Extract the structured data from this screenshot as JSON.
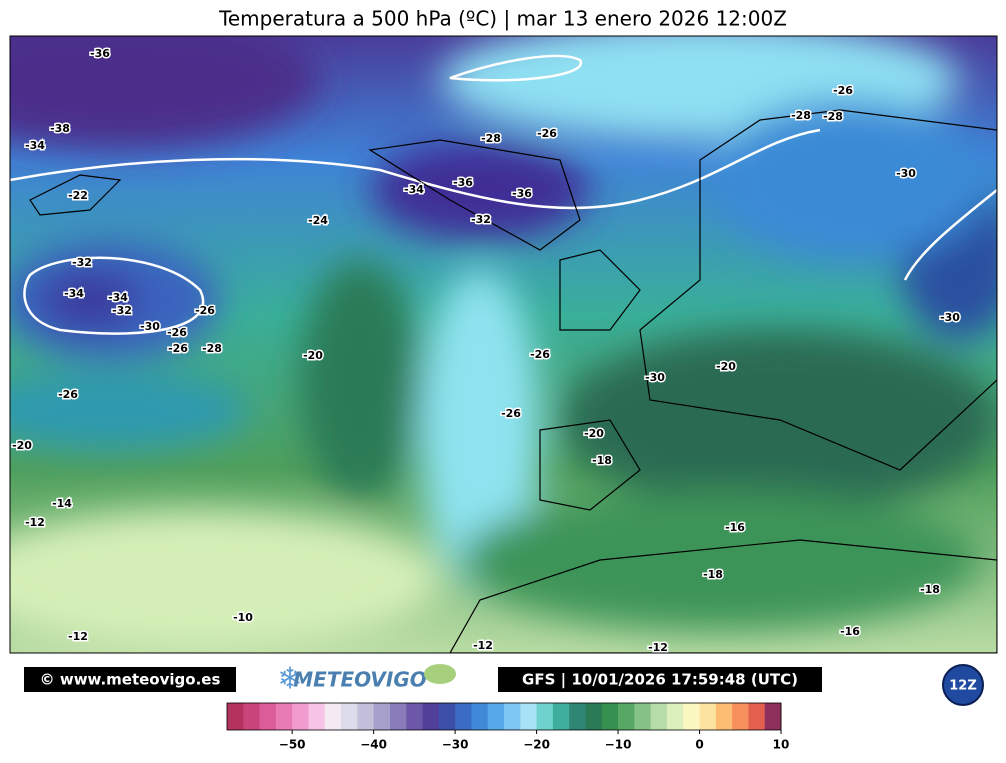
{
  "title": "Temperatura a 500 hPa (ºC) | mar 13 enero 2026 12:00Z",
  "contour_labels": [
    -36,
    -38,
    -34,
    -22,
    -32,
    -34,
    -34,
    -32,
    -30,
    -26,
    -26,
    -26,
    -28,
    -20,
    -24,
    -26,
    -20,
    -14,
    -12,
    -10,
    -12,
    -12,
    -12,
    -28,
    -26,
    -34,
    -36,
    -36,
    -32,
    -26,
    -26,
    -20,
    -18,
    -30,
    -20,
    -16,
    -18,
    -18,
    -16,
    -30,
    -30,
    -28,
    -28,
    -26
  ],
  "footer": {
    "copyright": "© www.meteovigo.es",
    "logo": "METEOVIGO",
    "model": "GFS | 10/01/2026 17:59:48 (UTC)",
    "run": "12Z"
  },
  "colorbar": {
    "range": [
      -58,
      10
    ],
    "colors": [
      "#b3325e",
      "#c8447a",
      "#db5c98",
      "#e87ab4",
      "#f19bcf",
      "#f7c3e6",
      "#f3eaf3",
      "#dcdbe9",
      "#c4c0dc",
      "#a8a0cc",
      "#8a7cba",
      "#6d57a8",
      "#513f99",
      "#3c4fa9",
      "#3a6cc4",
      "#3f8ad8",
      "#56a9e8",
      "#7ec6f2",
      "#a7e3f6",
      "#6dd3cc",
      "#3fae9c",
      "#2f8675",
      "#2b7a56",
      "#36904f",
      "#58a865",
      "#86c287",
      "#b5dca9",
      "#dcf0be",
      "#fbf7c0",
      "#fde3a0",
      "#fcbd72",
      "#f6905c",
      "#e3604f",
      "#8e2f5c"
    ],
    "ticks": [
      {
        "value": -50,
        "label": "−50"
      },
      {
        "value": -40,
        "label": "−40"
      },
      {
        "value": -30,
        "label": "−30"
      },
      {
        "value": -20,
        "label": "−20"
      },
      {
        "value": -10,
        "label": "−10"
      },
      {
        "value": 0,
        "label": "0"
      },
      {
        "value": 10,
        "label": "10"
      }
    ]
  }
}
